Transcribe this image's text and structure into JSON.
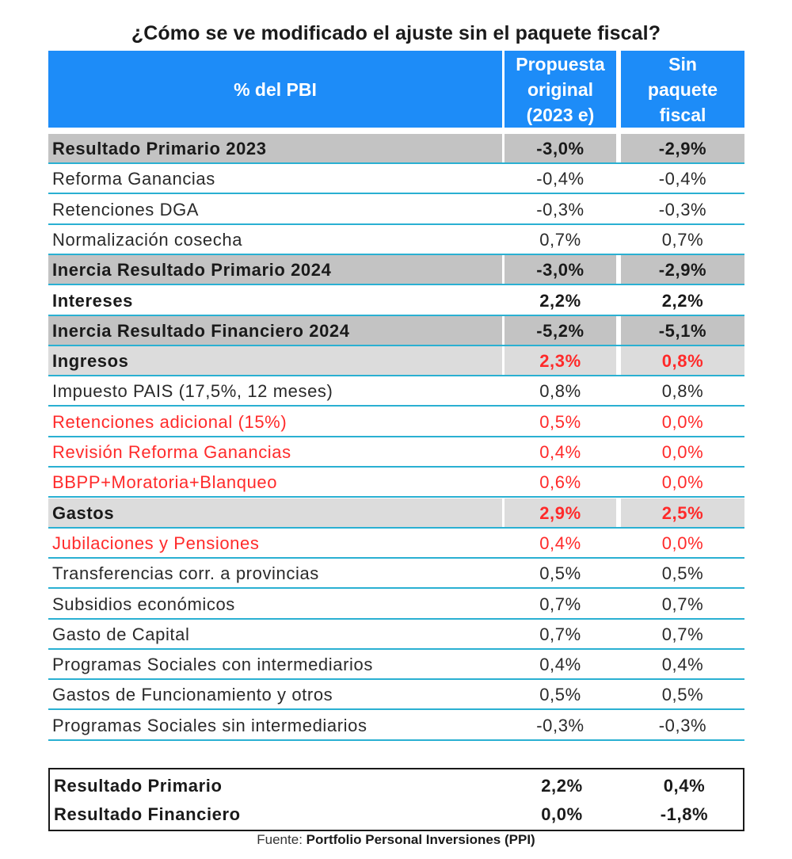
{
  "title": "¿Cómo se ve modificado el ajuste sin el paquete fiscal?",
  "chart_data": {
    "type": "table",
    "columns": [
      "% del PBI",
      "Propuesta original (2023 e)",
      "Sin paquete fiscal"
    ],
    "header": {
      "col0": "% del PBI",
      "col1_lines": [
        "Propuesta",
        "original",
        "(2023 e)"
      ],
      "col2_lines": [
        "Sin",
        "paquete",
        "fiscal"
      ]
    },
    "rows": [
      {
        "label": "Resultado Primario 2023",
        "v1": "-3,0%",
        "v2": "-2,9%",
        "style": "gray",
        "bold": true,
        "label_red": false,
        "values_red": false
      },
      {
        "label": "Reforma Ganancias",
        "v1": "-0,4%",
        "v2": "-0,4%",
        "style": "plain",
        "bold": false,
        "label_red": false,
        "values_red": false
      },
      {
        "label": "Retenciones DGA",
        "v1": "-0,3%",
        "v2": "-0,3%",
        "style": "plain",
        "bold": false,
        "label_red": false,
        "values_red": false
      },
      {
        "label": "Normalización cosecha",
        "v1": "0,7%",
        "v2": "0,7%",
        "style": "plain",
        "bold": false,
        "label_red": false,
        "values_red": false
      },
      {
        "label": "Inercia Resultado Primario 2024",
        "v1": "-3,0%",
        "v2": "-2,9%",
        "style": "gray",
        "bold": true,
        "label_red": false,
        "values_red": false
      },
      {
        "label": "Intereses",
        "v1": "2,2%",
        "v2": "2,2%",
        "style": "plain",
        "bold": true,
        "label_red": false,
        "values_red": false
      },
      {
        "label": "Inercia Resultado Financiero 2024",
        "v1": "-5,2%",
        "v2": "-5,1%",
        "style": "gray",
        "bold": true,
        "label_red": false,
        "values_red": false
      },
      {
        "label": "Ingresos",
        "v1": "2,3%",
        "v2": "0,8%",
        "style": "lightgray",
        "bold": true,
        "label_red": false,
        "values_red": true
      },
      {
        "label": "Impuesto PAIS (17,5%, 12 meses)",
        "v1": "0,8%",
        "v2": "0,8%",
        "style": "plain",
        "bold": false,
        "label_red": false,
        "values_red": false
      },
      {
        "label": "Retenciones adicional (15%)",
        "v1": "0,5%",
        "v2": "0,0%",
        "style": "plain",
        "bold": false,
        "label_red": true,
        "values_red": true
      },
      {
        "label": "Revisión Reforma Ganancias",
        "v1": "0,4%",
        "v2": "0,0%",
        "style": "plain",
        "bold": false,
        "label_red": true,
        "values_red": true
      },
      {
        "label": "BBPP+Moratoria+Blanqueo",
        "v1": "0,6%",
        "v2": "0,0%",
        "style": "plain",
        "bold": false,
        "label_red": true,
        "values_red": true
      },
      {
        "label": "Gastos",
        "v1": "2,9%",
        "v2": "2,5%",
        "style": "lightgray",
        "bold": true,
        "label_red": false,
        "values_red": true
      },
      {
        "label": "Jubilaciones y Pensiones",
        "v1": "0,4%",
        "v2": "0,0%",
        "style": "plain",
        "bold": false,
        "label_red": true,
        "values_red": true
      },
      {
        "label": "Transferencias corr. a provincias",
        "v1": "0,5%",
        "v2": "0,5%",
        "style": "plain",
        "bold": false,
        "label_red": false,
        "values_red": false
      },
      {
        "label": "Subsidios económicos",
        "v1": "0,7%",
        "v2": "0,7%",
        "style": "plain",
        "bold": false,
        "label_red": false,
        "values_red": false
      },
      {
        "label": "Gasto de Capital",
        "v1": "0,7%",
        "v2": "0,7%",
        "style": "plain",
        "bold": false,
        "label_red": false,
        "values_red": false
      },
      {
        "label": "Programas Sociales con intermediarios",
        "v1": "0,4%",
        "v2": "0,4%",
        "style": "plain",
        "bold": false,
        "label_red": false,
        "values_red": false
      },
      {
        "label": "Gastos de Funcionamiento y otros",
        "v1": "0,5%",
        "v2": "0,5%",
        "style": "plain",
        "bold": false,
        "label_red": false,
        "values_red": false
      },
      {
        "label": "Programas Sociales sin intermediarios",
        "v1": "-0,3%",
        "v2": "-0,3%",
        "style": "plain",
        "bold": false,
        "label_red": false,
        "values_red": false
      }
    ],
    "summary": [
      {
        "label": "Resultado Primario",
        "v1": "2,2%",
        "v2": "0,4%"
      },
      {
        "label": "Resultado Financiero",
        "v1": "0,0%",
        "v2": "-1,8%"
      }
    ]
  },
  "source": {
    "prefix": "Fuente: ",
    "name": "Portfolio Personal Inversiones (PPI)"
  },
  "colors": {
    "header_bg": "#1d8cf8",
    "gray_row": "#c3c3c3",
    "lightgray_row": "#dcdcdc",
    "red": "#ff2a2a",
    "row_line": "#2ab0d2"
  }
}
